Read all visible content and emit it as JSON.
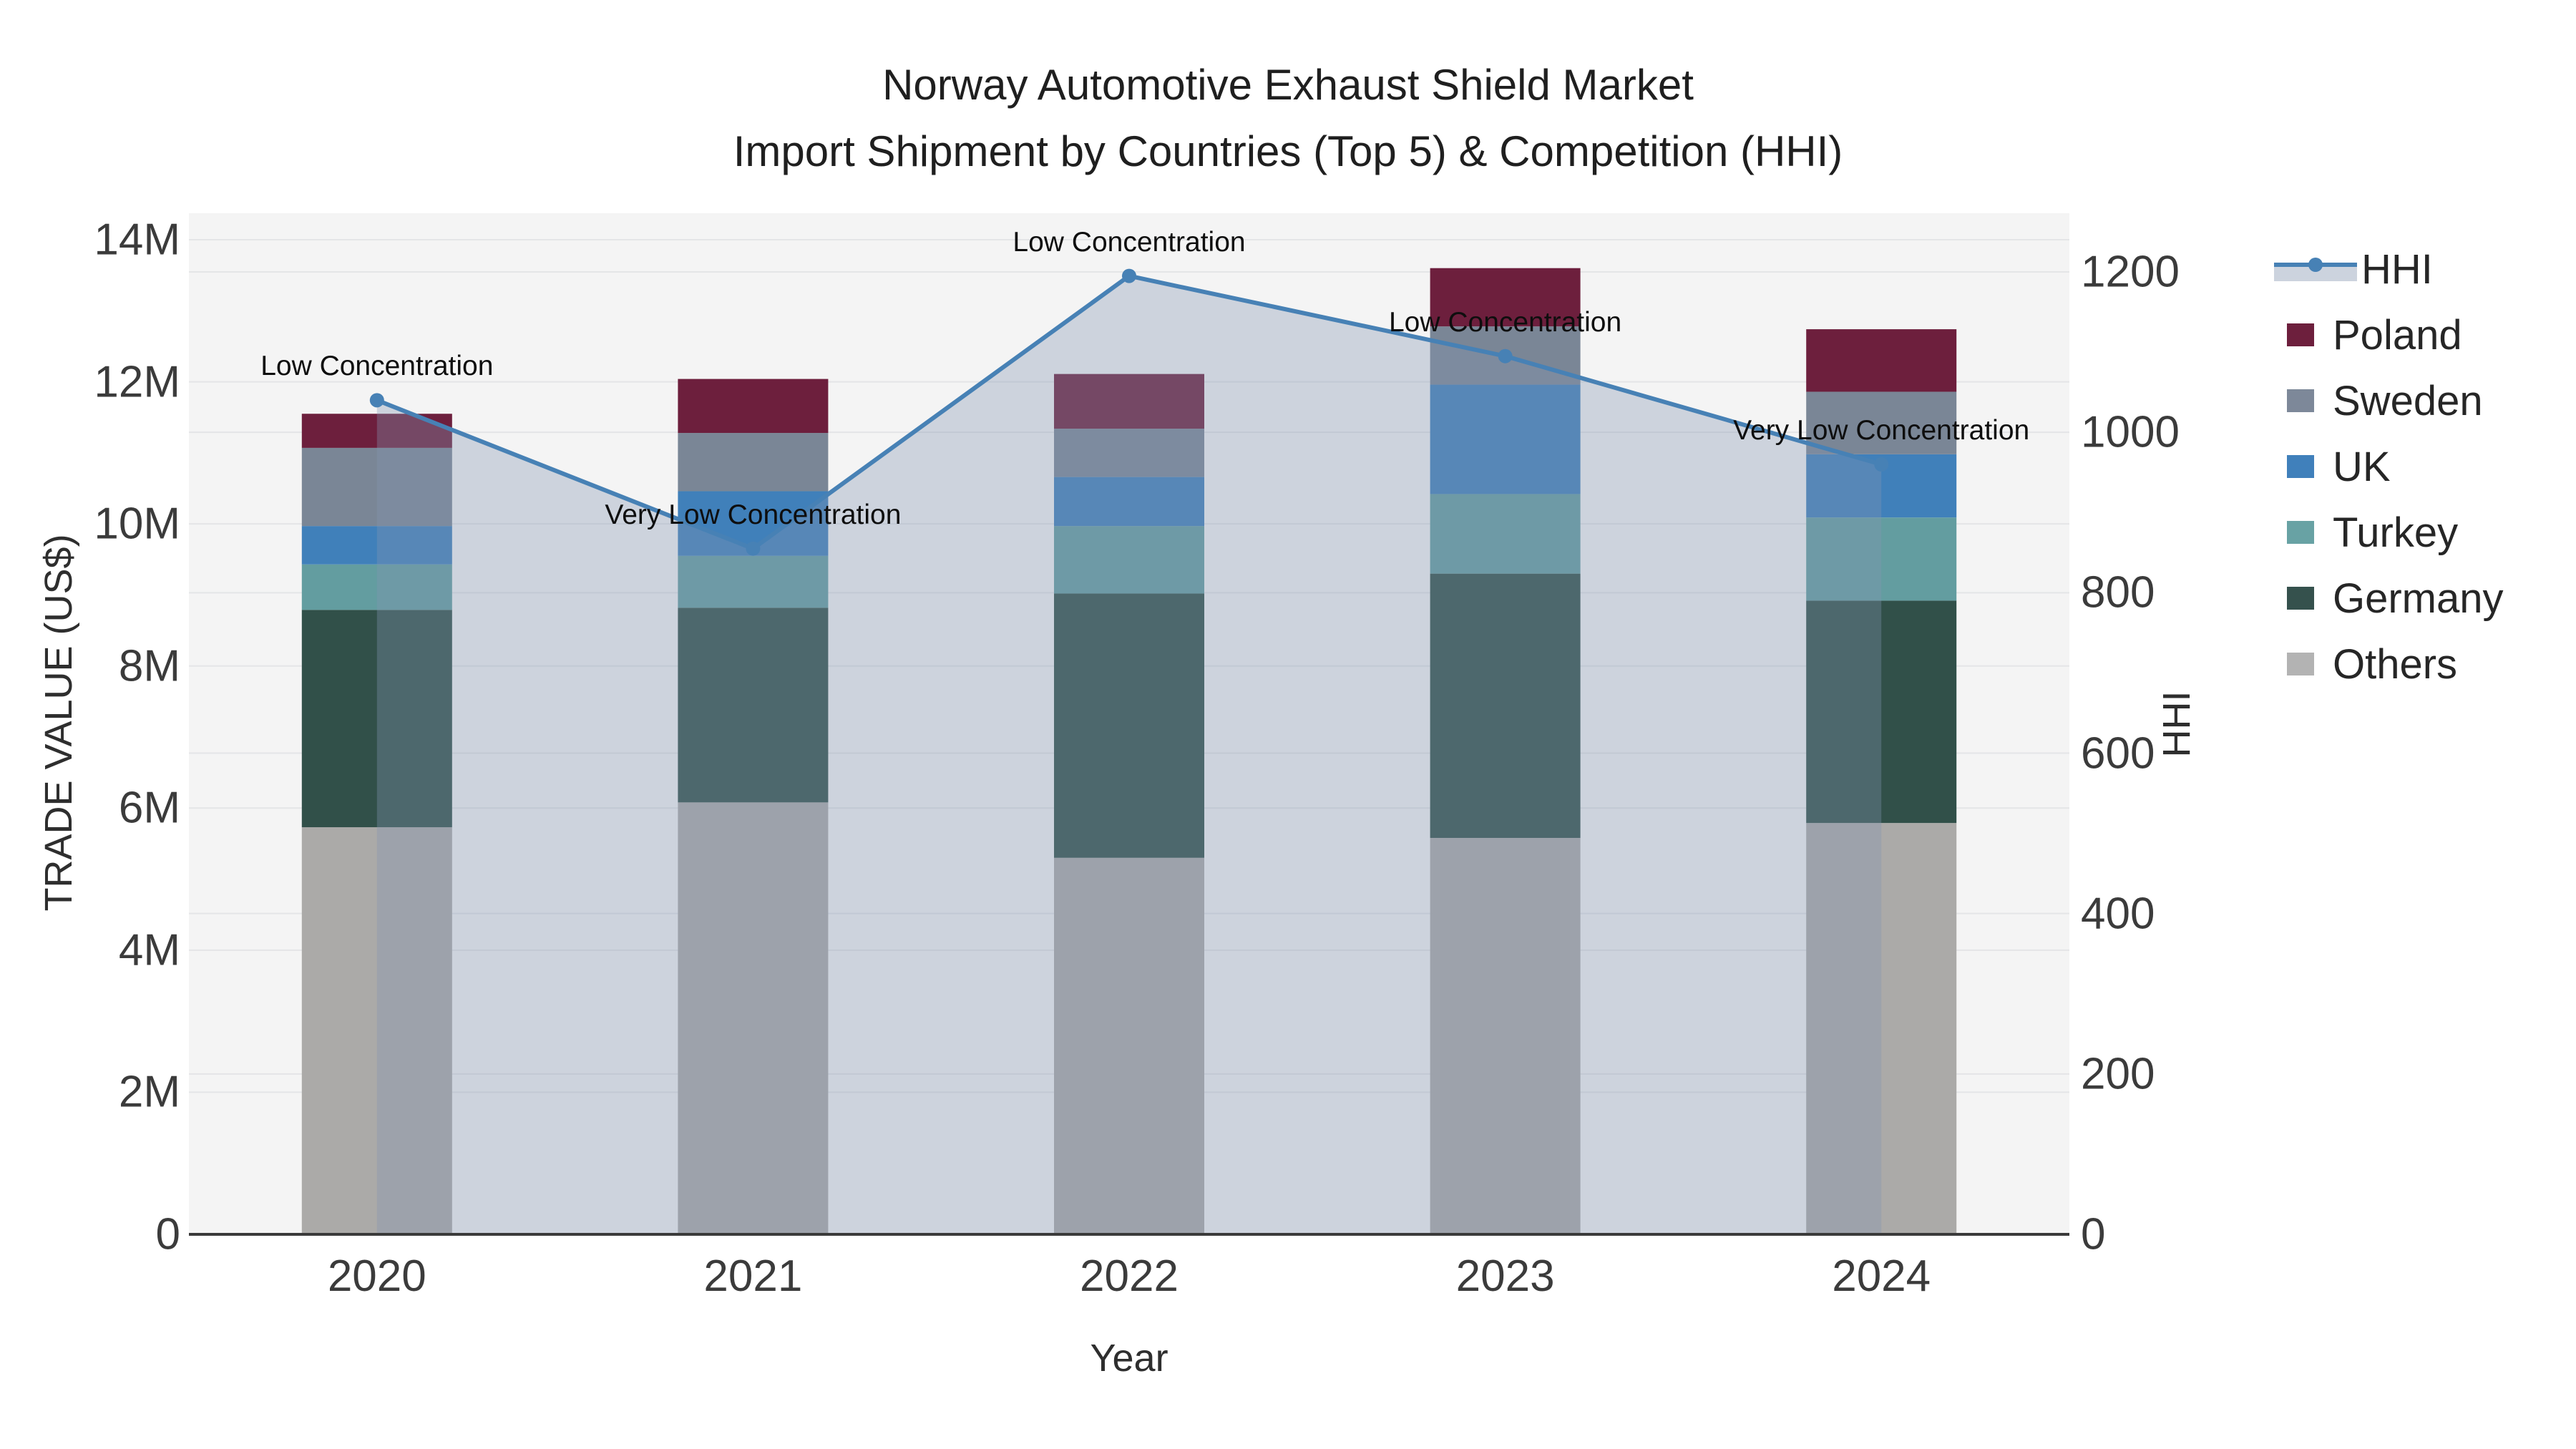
{
  "title": {
    "line1": "Norway Automotive Exhaust Shield Market",
    "line2": "Import Shipment by Countries (Top 5) & Competition (HHI)"
  },
  "axes": {
    "x": {
      "title": "Year",
      "tick_labels": [
        "2020",
        "2021",
        "2022",
        "2023",
        "2024"
      ]
    },
    "y_left": {
      "title": "TRADE VALUE (US$)",
      "tick_labels": [
        "0",
        "2M",
        "4M",
        "6M",
        "8M",
        "10M",
        "12M",
        "14M"
      ],
      "tick_values_millions": [
        0,
        2,
        4,
        6,
        8,
        10,
        12,
        14
      ],
      "max_millions": 14
    },
    "y_right": {
      "title": "HHI",
      "tick_labels": [
        "0",
        "200",
        "400",
        "600",
        "800",
        "1000",
        "1200"
      ],
      "tick_values": [
        0,
        200,
        400,
        600,
        800,
        1000,
        1200
      ],
      "max": 1200
    }
  },
  "chart_data": {
    "type": "bar",
    "subtype": "stacked-bars-with-line-overlay",
    "categories": [
      "2020",
      "2021",
      "2022",
      "2023",
      "2024"
    ],
    "bar_unit": "million US$",
    "series": [
      {
        "name": "Others",
        "color": "#abaaa8",
        "values": [
          5.73,
          6.08,
          5.3,
          5.58,
          5.79
        ]
      },
      {
        "name": "Germany",
        "color": "#315049",
        "values": [
          3.06,
          2.74,
          3.72,
          3.72,
          3.13
        ]
      },
      {
        "name": "Turkey",
        "color": "#639da0",
        "values": [
          0.64,
          0.73,
          0.95,
          1.12,
          1.17
        ]
      },
      {
        "name": "UK",
        "color": "#4080ba",
        "values": [
          0.54,
          0.91,
          0.69,
          1.54,
          0.89
        ]
      },
      {
        "name": "Sweden",
        "color": "#7a8696",
        "values": [
          1.1,
          0.82,
          0.68,
          0.82,
          0.88
        ]
      },
      {
        "name": "Poland",
        "color": "#6d1f3d",
        "values": [
          0.48,
          0.76,
          0.77,
          0.82,
          0.88
        ]
      }
    ],
    "bar_totals_millions": [
      11.55,
      12.04,
      12.11,
      13.6,
      12.74
    ],
    "line_series": {
      "name": "HHI",
      "values": [
        1040,
        855,
        1195,
        1095,
        960
      ],
      "color": "#4781b5",
      "fill_to_zero_color": "rgba(131,149,177,0.35)"
    },
    "annotations": [
      {
        "category": "2020",
        "text": "Low Concentration"
      },
      {
        "category": "2021",
        "text": "Very Low Concentration"
      },
      {
        "category": "2022",
        "text": "Low Concentration"
      },
      {
        "category": "2023",
        "text": "Low Concentration"
      },
      {
        "category": "2024",
        "text": "Very Low Concentration"
      }
    ],
    "legend_position": "right",
    "grid": "both-axes-horizontal"
  },
  "legend": {
    "items": [
      {
        "label": "HHI",
        "type": "line",
        "color": "#4781b5"
      },
      {
        "label": "Poland",
        "type": "swatch",
        "color": "#6d1f3d"
      },
      {
        "label": "Sweden",
        "type": "swatch",
        "color": "#7d8899"
      },
      {
        "label": "UK",
        "type": "swatch",
        "color": "#4080bb"
      },
      {
        "label": "Turkey",
        "type": "swatch",
        "color": "#68a2a4"
      },
      {
        "label": "Germany",
        "type": "swatch",
        "color": "#35514d"
      },
      {
        "label": "Others",
        "type": "swatch",
        "color": "#b3b3b3"
      }
    ]
  },
  "style": {
    "plot_bg": "#f4f4f4",
    "grid_color": "#e4e5e7",
    "axis_line_color": "#3a3a3a"
  }
}
